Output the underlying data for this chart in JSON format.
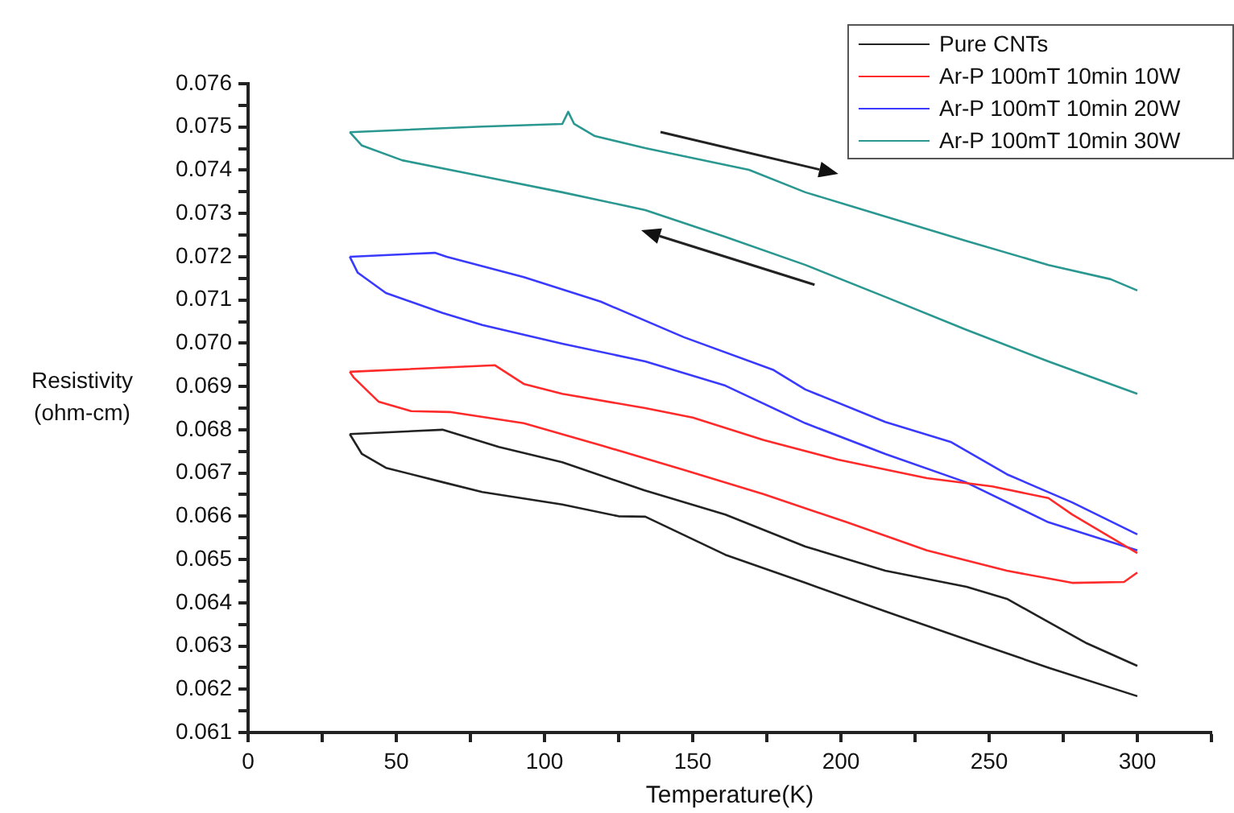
{
  "chart_data": {
    "type": "line",
    "xlabel": "Temperature(K)",
    "ylabel": "Resistivity (ohm-cm)",
    "legend": "top right",
    "marker": "none",
    "line_style": "solid",
    "xlim": [
      0,
      325
    ],
    "xticks": [
      0,
      {
        "value": 25,
        "label": null
      },
      50,
      {
        "value": 75,
        "label": null
      },
      100,
      {
        "value": 125,
        "label": null
      },
      150,
      {
        "value": 175,
        "label": null
      },
      200,
      {
        "value": 225,
        "label": null
      },
      250,
      {
        "value": 275,
        "label": null
      },
      300,
      {
        "value": 325,
        "label": null
      }
    ],
    "ylim": [
      0.061,
      0.076
    ],
    "yticks": [
      0.061,
      {
        "value": 0.0615,
        "label": null
      },
      0.062,
      {
        "value": 0.0625,
        "label": null
      },
      0.063,
      {
        "value": 0.0635,
        "label": null
      },
      0.064,
      {
        "value": 0.0645,
        "label": null
      },
      0.065,
      {
        "value": 0.0655,
        "label": null
      },
      0.066,
      {
        "value": 0.0665,
        "label": null
      },
      0.067,
      {
        "value": 0.0675,
        "label": null
      },
      0.068,
      {
        "value": 0.0685,
        "label": null
      },
      0.069,
      {
        "value": 0.0695,
        "label": null
      },
      {
        "value": 0.07,
        "label": "0.070"
      },
      {
        "value": 0.0705,
        "label": null
      },
      0.071,
      {
        "value": 0.0715,
        "label": null
      },
      0.072,
      {
        "value": 0.0725,
        "label": null
      },
      0.073,
      {
        "value": 0.0735,
        "label": null
      },
      0.074,
      {
        "value": 0.0745,
        "label": null
      },
      0.075,
      {
        "value": 0.0755,
        "label": null
      },
      0.076
    ],
    "series": [
      {
        "name": "Pure CNTs",
        "color": "#222222",
        "x": [
          34.3,
          65.6,
          84.6,
          106,
          133.6,
          161,
          188,
          215,
          242.4,
          256,
          283,
          300
        ],
        "values": [
          0.0679,
          0.068,
          0.0676,
          0.06725,
          0.0666,
          0.06604,
          0.0653,
          0.06474,
          0.06437,
          0.06409,
          0.06306,
          0.06254
        ]
      },
      {
        "color": "#222222",
        "x": [
          34.3,
          38.4,
          46.5,
          65.5,
          79,
          106,
          125,
          134,
          161,
          188,
          215,
          242,
          270,
          300
        ],
        "values": [
          0.0679,
          0.06744,
          0.06712,
          0.06679,
          0.06656,
          0.06627,
          0.066,
          0.06599,
          0.06511,
          0.06446,
          0.0638,
          0.06316,
          0.0625,
          0.06184
        ]
      },
      {
        "name": "Ar-P 100mT 10min 10W",
        "color": "#ff2a2a",
        "x": [
          34.3,
          83.3,
          93,
          106,
          134,
          150,
          174,
          199,
          229,
          251,
          270,
          278,
          300
        ],
        "values": [
          0.06934,
          0.06949,
          0.06906,
          0.06883,
          0.0685,
          0.06828,
          0.06776,
          0.06731,
          0.06688,
          0.06669,
          0.06642,
          0.06604,
          0.06515
        ]
      },
      {
        "color": "#ff2a2a",
        "x": [
          34.3,
          35.6,
          44,
          55,
          68,
          93,
          120,
          147,
          174,
          202,
          229,
          256,
          278,
          295.5,
          300
        ],
        "values": [
          0.06934,
          0.06921,
          0.06865,
          0.06843,
          0.06841,
          0.06815,
          0.06762,
          0.06707,
          0.06651,
          0.06586,
          0.06521,
          0.06474,
          0.06446,
          0.06448,
          0.0647
        ]
      },
      {
        "name": "Ar-P 100mT 10min 20W",
        "color": "#3a3aff",
        "x": [
          34.3,
          63,
          67,
          93,
          119,
          147,
          177,
          188,
          215,
          237,
          256,
          278,
          300
        ],
        "values": [
          0.072,
          0.07209,
          0.072,
          0.07153,
          0.07096,
          0.07014,
          0.06939,
          0.06893,
          0.06818,
          0.06772,
          0.06697,
          0.06632,
          0.06558
        ]
      },
      {
        "color": "#3a3aff",
        "x": [
          34.3,
          37,
          46.5,
          65.6,
          79,
          106,
          134,
          161,
          188,
          215,
          242,
          270,
          300
        ],
        "values": [
          0.072,
          0.07163,
          0.07116,
          0.0707,
          0.07042,
          0.06999,
          0.06958,
          0.06902,
          0.06815,
          0.06744,
          0.06679,
          0.06586,
          0.06521
        ]
      },
      {
        "name": "Ar-P 100mT 10min 30W",
        "color": "#2a9890",
        "x": [
          34.3,
          79,
          106,
          108,
          110,
          117,
          134,
          169,
          188,
          215,
          242,
          270,
          291,
          300
        ],
        "values": [
          0.07488,
          0.07501,
          0.07507,
          0.07535,
          0.07507,
          0.07479,
          0.07451,
          0.07401,
          0.07349,
          0.07293,
          0.07237,
          0.07181,
          0.07148,
          0.07122
        ]
      },
      {
        "color": "#2a9890",
        "x": [
          34.3,
          38.4,
          52,
          79,
          106,
          134,
          161,
          188,
          215,
          242,
          270,
          300
        ],
        "values": [
          0.07488,
          0.07457,
          0.07423,
          0.07386,
          0.07349,
          0.07308,
          0.07246,
          0.07181,
          0.07107,
          0.07032,
          0.06958,
          0.06883
        ]
      }
    ]
  }
}
